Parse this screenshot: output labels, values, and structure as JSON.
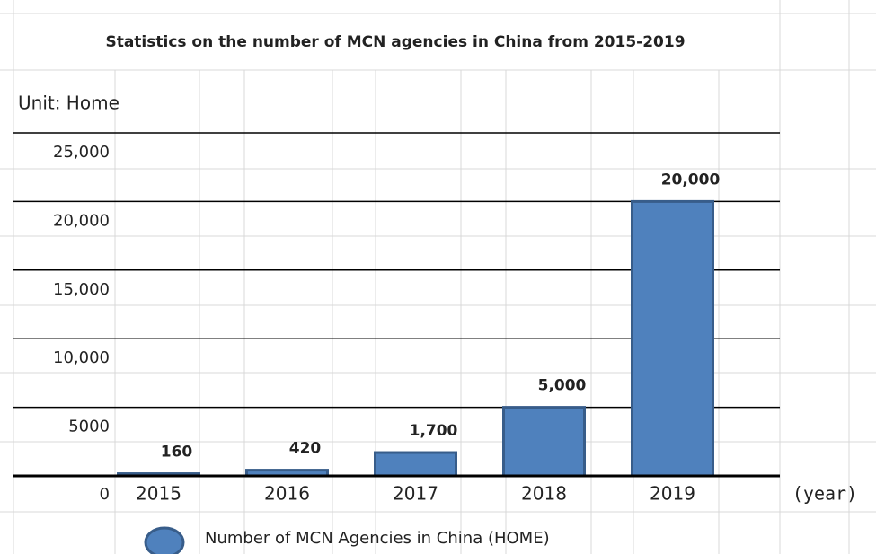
{
  "chart_data": {
    "type": "bar",
    "title": "Statistics on the number of MCN agencies in China from 2015-2019",
    "unit_label": "Unit: Home",
    "x_axis_label": "(year)",
    "categories": [
      "2015",
      "2016",
      "2017",
      "2018",
      "2019"
    ],
    "series": [
      {
        "name": "Number of MCN Agencies in China (HOME)",
        "color": "#4f81bd",
        "values": [
          160,
          420,
          1700,
          5000,
          20000
        ],
        "value_labels": [
          "160",
          "420",
          "1,700",
          "5,000",
          "20,000"
        ]
      }
    ],
    "ylim": [
      0,
      25000
    ],
    "yticks": [
      0,
      5000,
      {
        "value": 10000,
        "label": "10,000"
      },
      {
        "value": 15000,
        "label": "15,000"
      },
      {
        "value": 20000,
        "label": "20,000"
      },
      {
        "value": 25000,
        "label": "25,000"
      }
    ],
    "grid": true,
    "legend": "bottom"
  }
}
